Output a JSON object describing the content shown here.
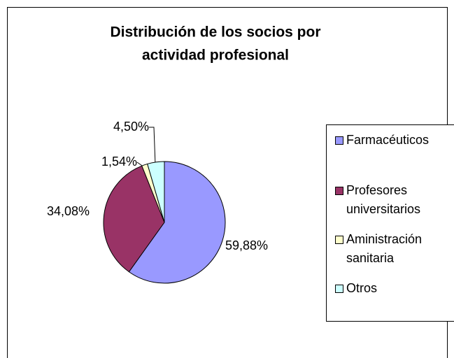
{
  "chart_data": {
    "type": "pie",
    "title": [
      "Distribución de los socios por",
      "actividad profesional"
    ],
    "categories": [
      "Farmacéuticos",
      "Profesores universitarios",
      "Aministración sanitaria",
      "Otros"
    ],
    "values": [
      59.88,
      34.08,
      1.54,
      4.5
    ],
    "value_labels": [
      "59,88%",
      "34,08%",
      "1,54%",
      "4,50%"
    ],
    "colors": [
      "#9999ff",
      "#993366",
      "#ffffcc",
      "#ccffff"
    ],
    "legend": "right"
  }
}
